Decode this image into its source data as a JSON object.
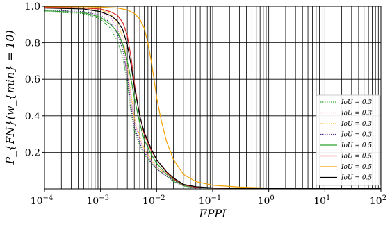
{
  "chart_data": {
    "type": "line",
    "title": "",
    "xlabel": "FPPI",
    "ylabel": "P_{FN}(w_{min} = 10)",
    "xscale": "log",
    "xlim": [
      0.0001,
      100
    ],
    "ylim": [
      0.0,
      1.0
    ],
    "grid": true,
    "legend_placement": "right",
    "x_tick_labels": [
      {
        "value": 0.0001,
        "base": "10",
        "exp": "−4"
      },
      {
        "value": 0.001,
        "base": "10",
        "exp": "−3"
      },
      {
        "value": 0.01,
        "base": "10",
        "exp": "−2"
      },
      {
        "value": 0.1,
        "base": "10",
        "exp": "−1"
      },
      {
        "value": 1,
        "base": "10",
        "exp": "0"
      },
      {
        "value": 10,
        "base": "10",
        "exp": "1"
      },
      {
        "value": 100,
        "base": "10",
        "exp": "2"
      }
    ],
    "y_tick_labels": [
      {
        "value": 0.2,
        "label": "0.2"
      },
      {
        "value": 0.4,
        "label": "0.4"
      },
      {
        "value": 0.6,
        "label": "0.6"
      },
      {
        "value": 0.8,
        "label": "0.8"
      },
      {
        "value": 1.0,
        "label": "1.0"
      }
    ],
    "series": [
      {
        "name": "IoU = 0.3",
        "color": "#2ca02c",
        "dash": "dotted",
        "x": [
          0.0001,
          0.0005,
          0.001,
          0.0015,
          0.002,
          0.0025,
          0.003,
          0.0035,
          0.004,
          0.005,
          0.006,
          0.008,
          0.01,
          0.015,
          0.02,
          0.03,
          0.05,
          0.1,
          0.3,
          1,
          10,
          100
        ],
        "y": [
          0.97,
          0.96,
          0.93,
          0.88,
          0.81,
          0.72,
          0.58,
          0.42,
          0.32,
          0.24,
          0.19,
          0.14,
          0.11,
          0.07,
          0.04,
          0.015,
          0.007,
          0.004,
          0.003,
          0.002,
          0.002,
          0.002
        ]
      },
      {
        "name": "IoU = 0.3",
        "color": "#e377c2",
        "dash": "dotted",
        "x": [
          0.0001,
          0.0005,
          0.001,
          0.0015,
          0.002,
          0.0025,
          0.003,
          0.0035,
          0.004,
          0.005,
          0.006,
          0.008,
          0.01,
          0.015,
          0.02,
          0.03,
          0.05,
          0.1,
          0.3,
          1,
          10,
          100
        ],
        "y": [
          0.99,
          0.985,
          0.97,
          0.94,
          0.88,
          0.79,
          0.65,
          0.49,
          0.37,
          0.27,
          0.21,
          0.15,
          0.12,
          0.08,
          0.05,
          0.02,
          0.009,
          0.005,
          0.003,
          0.002,
          0.002,
          0.002
        ]
      },
      {
        "name": "IoU = 0.3",
        "color": "#ffbb33",
        "dash": "dotted",
        "x": [
          0.0001,
          0.0005,
          0.001,
          0.0015,
          0.002,
          0.0025,
          0.003,
          0.0035,
          0.004,
          0.005,
          0.006,
          0.008,
          0.01,
          0.015,
          0.02,
          0.03,
          0.05,
          0.1,
          0.3,
          1,
          10,
          100
        ],
        "y": [
          0.995,
          0.99,
          0.98,
          0.96,
          0.91,
          0.83,
          0.69,
          0.52,
          0.39,
          0.29,
          0.22,
          0.16,
          0.12,
          0.08,
          0.05,
          0.02,
          0.01,
          0.005,
          0.003,
          0.002,
          0.002,
          0.002
        ]
      },
      {
        "name": "IoU = 0.3",
        "color": "#4b2e83",
        "dash": "dotted",
        "x": [
          0.0001,
          0.0005,
          0.001,
          0.0015,
          0.002,
          0.0025,
          0.003,
          0.0035,
          0.004,
          0.005,
          0.006,
          0.008,
          0.01,
          0.015,
          0.02,
          0.03,
          0.05,
          0.1,
          0.3,
          1,
          10,
          100
        ],
        "y": [
          0.98,
          0.97,
          0.95,
          0.91,
          0.85,
          0.76,
          0.62,
          0.45,
          0.34,
          0.25,
          0.2,
          0.145,
          0.11,
          0.07,
          0.045,
          0.018,
          0.008,
          0.004,
          0.003,
          0.002,
          0.002,
          0.002
        ]
      },
      {
        "name": "IoU = 0.5",
        "color": "#2ca02c",
        "dash": "solid",
        "x": [
          0.0001,
          0.0005,
          0.001,
          0.0015,
          0.002,
          0.0025,
          0.003,
          0.0035,
          0.004,
          0.005,
          0.006,
          0.008,
          0.01,
          0.015,
          0.02,
          0.03,
          0.05,
          0.1,
          0.3,
          1,
          10,
          100
        ],
        "y": [
          0.975,
          0.965,
          0.94,
          0.9,
          0.86,
          0.79,
          0.7,
          0.6,
          0.5,
          0.36,
          0.27,
          0.19,
          0.14,
          0.08,
          0.05,
          0.02,
          0.01,
          0.005,
          0.003,
          0.002,
          0.002,
          0.002
        ]
      },
      {
        "name": "IoU = 0.5",
        "color": "#d62728",
        "dash": "solid",
        "x": [
          0.0001,
          0.0005,
          0.001,
          0.0015,
          0.002,
          0.0025,
          0.003,
          0.0035,
          0.004,
          0.005,
          0.006,
          0.008,
          0.01,
          0.015,
          0.02,
          0.03,
          0.05,
          0.1,
          0.3,
          1,
          10,
          100
        ],
        "y": [
          0.995,
          0.99,
          0.985,
          0.97,
          0.95,
          0.91,
          0.84,
          0.72,
          0.58,
          0.4,
          0.3,
          0.21,
          0.16,
          0.09,
          0.055,
          0.022,
          0.01,
          0.005,
          0.003,
          0.002,
          0.002,
          0.002
        ]
      },
      {
        "name": "IoU = 0.5",
        "color": "#f0a000",
        "dash": "solid",
        "x": [
          0.0001,
          0.0005,
          0.001,
          0.002,
          0.003,
          0.004,
          0.005,
          0.006,
          0.007,
          0.008,
          0.009,
          0.01,
          0.012,
          0.015,
          0.02,
          0.03,
          0.05,
          0.1,
          0.3,
          1,
          10,
          100
        ],
        "y": [
          0.998,
          0.997,
          0.995,
          0.99,
          0.98,
          0.96,
          0.93,
          0.88,
          0.8,
          0.7,
          0.6,
          0.5,
          0.38,
          0.26,
          0.16,
          0.08,
          0.04,
          0.02,
          0.01,
          0.005,
          0.003,
          0.003
        ]
      },
      {
        "name": "IoU = 0.5",
        "color": "#000000",
        "dash": "solid",
        "x": [
          0.0001,
          0.0005,
          0.001,
          0.0015,
          0.002,
          0.0025,
          0.003,
          0.0035,
          0.004,
          0.005,
          0.006,
          0.008,
          0.01,
          0.015,
          0.02,
          0.03,
          0.05,
          0.1,
          0.3,
          1,
          10,
          100
        ],
        "y": [
          0.99,
          0.985,
          0.97,
          0.95,
          0.92,
          0.87,
          0.79,
          0.68,
          0.56,
          0.4,
          0.31,
          0.22,
          0.16,
          0.095,
          0.06,
          0.025,
          0.012,
          0.006,
          0.003,
          0.002,
          0.002,
          0.002
        ]
      }
    ]
  }
}
